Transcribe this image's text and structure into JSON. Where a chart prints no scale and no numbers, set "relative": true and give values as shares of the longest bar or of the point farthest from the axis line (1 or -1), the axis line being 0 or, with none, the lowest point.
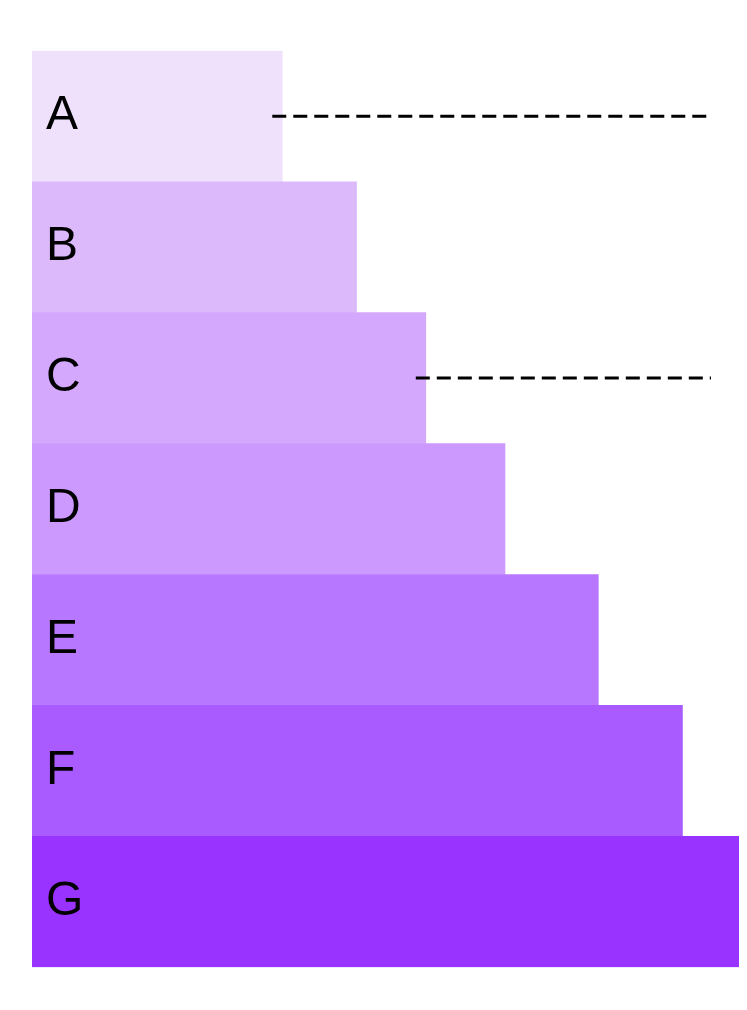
{
  "chart_data": {
    "type": "bar",
    "orientation": "horizontal",
    "relative": true,
    "categories": [
      "A",
      "B",
      "C",
      "D",
      "E",
      "F",
      "G"
    ],
    "values": [
      0.354,
      0.459,
      0.557,
      0.669,
      0.801,
      0.92,
      1
    ],
    "colors": [
      "#efe0fc",
      "#dcb9fb",
      "#d4a8fc",
      "#cc99ff",
      "#b877ff",
      "#a95bff",
      "#9933ff"
    ],
    "ref_lines": [
      {
        "axis": "y",
        "value": "A",
        "color": "#000000",
        "line_style": "dashed"
      },
      {
        "axis": "y",
        "value": "C",
        "color": "#000000",
        "line_style": "dashed"
      }
    ],
    "grid": false,
    "legend": false
  }
}
